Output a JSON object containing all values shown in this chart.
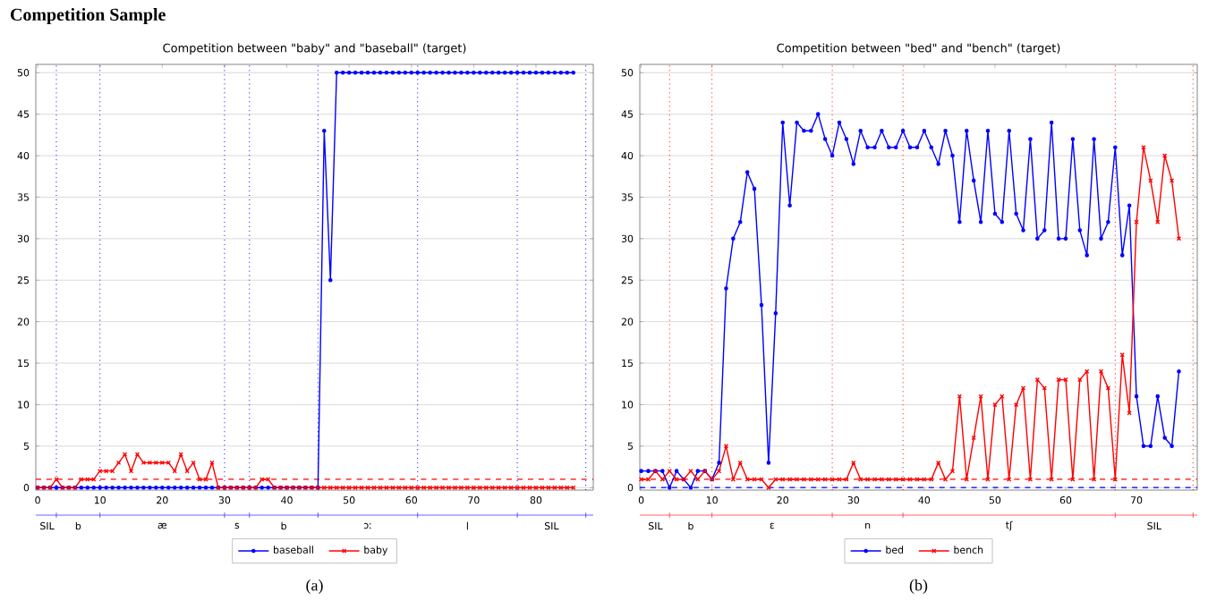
{
  "chart_data": [
    {
      "type": "line",
      "title": "Competition between \"baby\" and \"baseball\" (target)",
      "x": [
        0,
        1,
        2,
        3,
        4,
        5,
        6,
        7,
        8,
        9,
        10,
        11,
        12,
        13,
        14,
        15,
        16,
        17,
        18,
        19,
        20,
        21,
        22,
        23,
        24,
        25,
        26,
        27,
        28,
        29,
        30,
        31,
        32,
        33,
        34,
        35,
        36,
        37,
        38,
        39,
        40,
        41,
        42,
        43,
        44,
        45,
        46,
        47,
        48,
        49,
        50,
        51,
        52,
        53,
        54,
        55,
        56,
        57,
        58,
        59,
        60,
        61,
        62,
        63,
        64,
        65,
        66,
        67,
        68,
        69,
        70,
        71,
        72,
        73,
        74,
        75,
        76,
        77,
        78,
        79,
        80,
        81,
        82,
        83,
        84,
        85,
        86
      ],
      "series": [
        {
          "name": "baseball",
          "color": "#0000ff",
          "marker": "circle",
          "values": [
            0,
            0,
            0,
            0,
            0,
            0,
            0,
            0,
            0,
            0,
            0,
            0,
            0,
            0,
            0,
            0,
            0,
            0,
            0,
            0,
            0,
            0,
            0,
            0,
            0,
            0,
            0,
            0,
            0,
            0,
            0,
            0,
            0,
            0,
            0,
            0,
            0,
            0,
            0,
            0,
            0,
            0,
            0,
            0,
            0,
            0,
            43,
            25,
            50,
            50,
            50,
            50,
            50,
            50,
            50,
            50,
            50,
            50,
            50,
            50,
            50,
            50,
            50,
            50,
            50,
            50,
            50,
            50,
            50,
            50,
            50,
            50,
            50,
            50,
            50,
            50,
            50,
            50,
            50,
            50,
            50,
            50,
            50,
            50,
            50,
            50,
            50
          ]
        },
        {
          "name": "baby",
          "color": "#ff0000",
          "marker": "cross",
          "values": [
            0,
            0,
            0,
            1,
            0,
            0,
            0,
            1,
            1,
            1,
            2,
            2,
            2,
            3,
            4,
            2,
            4,
            3,
            3,
            3,
            3,
            3,
            2,
            4,
            2,
            3,
            1,
            1,
            3,
            0,
            0,
            0,
            0,
            0,
            0,
            0,
            1,
            1,
            0,
            0,
            0,
            0,
            0,
            0,
            0,
            0,
            0,
            0,
            0,
            0,
            0,
            0,
            0,
            0,
            0,
            0,
            0,
            0,
            0,
            0,
            0,
            0,
            0,
            0,
            0,
            0,
            0,
            0,
            0,
            0,
            0,
            0,
            0,
            0,
            0,
            0,
            0,
            0,
            0,
            0,
            0,
            0,
            0,
            0,
            0,
            0,
            0
          ]
        }
      ],
      "xlim": [
        -0.3,
        89.2
      ],
      "ylim": [
        -0.3,
        51
      ],
      "xticks": [
        0,
        10,
        20,
        30,
        40,
        50,
        60,
        70,
        80
      ],
      "yticks": [
        0,
        5,
        10,
        15,
        20,
        25,
        30,
        35,
        40,
        45,
        50
      ],
      "ref_lines": [
        {
          "axis": "x",
          "value": 3,
          "color": "#0000ff",
          "line_style": "dotted"
        },
        {
          "axis": "x",
          "value": 10,
          "color": "#0000ff",
          "line_style": "dotted"
        },
        {
          "axis": "x",
          "value": 30,
          "color": "#0000ff",
          "line_style": "dotted"
        },
        {
          "axis": "x",
          "value": 34,
          "color": "#0000ff",
          "line_style": "dotted"
        },
        {
          "axis": "x",
          "value": 45,
          "color": "#0000ff",
          "line_style": "dotted"
        },
        {
          "axis": "x",
          "value": 61,
          "color": "#0000ff",
          "line_style": "dotted"
        },
        {
          "axis": "x",
          "value": 77,
          "color": "#0000ff",
          "line_style": "dotted"
        },
        {
          "axis": "x",
          "value": 88,
          "color": "#0000ff",
          "line_style": "dotted"
        },
        {
          "axis": "y",
          "value": 1,
          "color": "#ff0000",
          "line_style": "dashed"
        }
      ],
      "grid": "y",
      "legend": "bottom",
      "line_style": "solid",
      "annotations": [
        "Competition Sample",
        "SIL",
        "b",
        "æ",
        "s",
        "b",
        "ɔː",
        "l",
        "SIL",
        "(a)"
      ]
    },
    {
      "type": "line",
      "title": "Competition between \"bed\" and \"bench\" (target)",
      "x": [
        0,
        1,
        2,
        3,
        4,
        5,
        6,
        7,
        8,
        9,
        10,
        11,
        12,
        13,
        14,
        15,
        16,
        17,
        18,
        19,
        20,
        21,
        22,
        23,
        24,
        25,
        26,
        27,
        28,
        29,
        30,
        31,
        32,
        33,
        34,
        35,
        36,
        37,
        38,
        39,
        40,
        41,
        42,
        43,
        44,
        45,
        46,
        47,
        48,
        49,
        50,
        51,
        52,
        53,
        54,
        55,
        56,
        57,
        58,
        59,
        60,
        61,
        62,
        63,
        64,
        65,
        66,
        67,
        68,
        69,
        70,
        71,
        72,
        73,
        74,
        75,
        76
      ],
      "series": [
        {
          "name": "bed",
          "color": "#0000ff",
          "marker": "circle",
          "values": [
            2,
            2,
            2,
            2,
            0,
            2,
            1,
            0,
            2,
            2,
            1,
            3,
            24,
            30,
            32,
            38,
            36,
            22,
            3,
            21,
            44,
            34,
            44,
            43,
            43,
            45,
            42,
            40,
            44,
            42,
            39,
            43,
            41,
            41,
            43,
            41,
            41,
            43,
            41,
            41,
            43,
            41,
            39,
            43,
            40,
            32,
            43,
            37,
            32,
            43,
            33,
            32,
            43,
            33,
            31,
            42,
            30,
            31,
            44,
            30,
            30,
            42,
            31,
            28,
            42,
            30,
            32,
            41,
            28,
            34,
            11,
            5,
            5,
            11,
            6,
            5,
            14
          ]
        },
        {
          "name": "bench",
          "color": "#ff0000",
          "marker": "cross",
          "values": [
            1,
            1,
            2,
            1,
            2,
            1,
            1,
            2,
            1,
            2,
            1,
            2,
            5,
            1,
            3,
            1,
            1,
            1,
            0,
            1,
            1,
            1,
            1,
            1,
            1,
            1,
            1,
            1,
            1,
            1,
            3,
            1,
            1,
            1,
            1,
            1,
            1,
            1,
            1,
            1,
            1,
            1,
            3,
            1,
            2,
            11,
            1,
            6,
            11,
            1,
            10,
            11,
            1,
            10,
            12,
            1,
            13,
            12,
            1,
            13,
            13,
            1,
            13,
            14,
            1,
            14,
            12,
            1,
            16,
            9,
            32,
            41,
            37,
            32,
            40,
            37,
            30
          ]
        }
      ],
      "xlim": [
        -0.2,
        78.6
      ],
      "ylim": [
        -0.3,
        51
      ],
      "xticks": [
        0,
        10,
        20,
        30,
        40,
        50,
        60,
        70
      ],
      "yticks": [
        0,
        5,
        10,
        15,
        20,
        25,
        30,
        35,
        40,
        45,
        50
      ],
      "ref_lines": [
        {
          "axis": "x",
          "value": 4,
          "color": "#ff0000",
          "line_style": "dotted"
        },
        {
          "axis": "x",
          "value": 10,
          "color": "#ff0000",
          "line_style": "dotted"
        },
        {
          "axis": "x",
          "value": 27,
          "color": "#ff0000",
          "line_style": "dotted"
        },
        {
          "axis": "x",
          "value": 37,
          "color": "#ff0000",
          "line_style": "dotted"
        },
        {
          "axis": "x",
          "value": 67,
          "color": "#ff0000",
          "line_style": "dotted"
        },
        {
          "axis": "x",
          "value": 78,
          "color": "#ff0000",
          "line_style": "dotted"
        },
        {
          "axis": "y",
          "value": 1,
          "color": "#ff0000",
          "line_style": "dashed"
        },
        {
          "axis": "y",
          "value": 0,
          "color": "#0000ff",
          "line_style": "dashed"
        }
      ],
      "grid": "y",
      "legend": "bottom",
      "line_style": "solid",
      "annotations": [
        "SIL",
        "b",
        "ɛ",
        "n",
        "tʃ",
        "SIL",
        "(b)"
      ]
    }
  ]
}
